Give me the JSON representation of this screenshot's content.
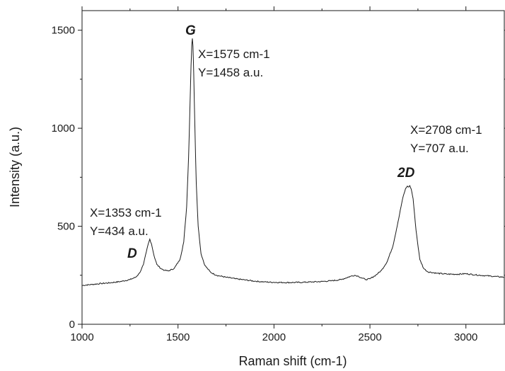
{
  "chart_data": {
    "type": "line",
    "title": "",
    "xlabel": "Raman shift (cm-1)",
    "ylabel": "Intensity (a.u.)",
    "xlim": [
      1000,
      3200
    ],
    "ylim": [
      0,
      1600
    ],
    "xticks": [
      1000,
      1500,
      2000,
      2500,
      3000
    ],
    "yticks": [
      0,
      500,
      1000,
      1500
    ],
    "grid": false,
    "legend": "none",
    "line_color": "#1a1a1a",
    "series": [
      {
        "x": [
          1000,
          1050,
          1100,
          1150,
          1200,
          1250,
          1280,
          1300,
          1320,
          1335,
          1345,
          1353,
          1362,
          1375,
          1390,
          1410,
          1430,
          1450,
          1480,
          1510,
          1530,
          1545,
          1555,
          1562,
          1568,
          1572,
          1575,
          1578,
          1582,
          1588,
          1595,
          1605,
          1620,
          1640,
          1670,
          1700,
          1750,
          1800,
          1850,
          1900,
          1950,
          2000,
          2050,
          2100,
          2150,
          2200,
          2250,
          2300,
          2350,
          2400,
          2420,
          2440,
          2460,
          2480,
          2500,
          2530,
          2560,
          2590,
          2620,
          2650,
          2670,
          2685,
          2695,
          2702,
          2708,
          2715,
          2725,
          2740,
          2760,
          2780,
          2800,
          2850,
          2900,
          2950,
          3000,
          3050,
          3100,
          3150,
          3200
        ],
        "y": [
          198,
          203,
          208,
          212,
          218,
          228,
          240,
          262,
          305,
          370,
          410,
          434,
          410,
          350,
          305,
          285,
          275,
          272,
          285,
          330,
          420,
          600,
          850,
          1100,
          1320,
          1430,
          1458,
          1420,
          1280,
          1000,
          720,
          500,
          360,
          300,
          265,
          250,
          240,
          232,
          226,
          220,
          216,
          214,
          213,
          213,
          214,
          216,
          218,
          222,
          228,
          245,
          250,
          245,
          235,
          228,
          232,
          250,
          275,
          320,
          400,
          540,
          640,
          690,
          705,
          700,
          707,
          690,
          640,
          480,
          330,
          285,
          268,
          260,
          256,
          255,
          258,
          252,
          248,
          244,
          240
        ]
      }
    ],
    "annotations": [
      {
        "peak": "D",
        "x_text": "X=1353 cm-1",
        "y_text": "Y=434 a.u.",
        "x": 1353,
        "y": 434
      },
      {
        "peak": "G",
        "x_text": "X=1575 cm-1",
        "y_text": "Y=1458 a.u.",
        "x": 1575,
        "y": 1458
      },
      {
        "peak": "2D",
        "x_text": "X=2708 cm-1",
        "y_text": "Y=707 a.u.",
        "x": 2708,
        "y": 707
      }
    ]
  }
}
